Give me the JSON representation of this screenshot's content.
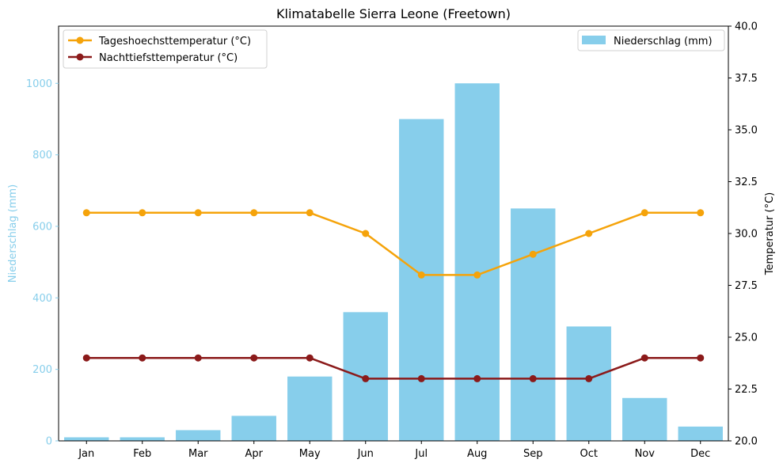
{
  "chart_data": {
    "type": "bar",
    "title": "Klimatabelle Sierra Leone (Freetown)",
    "categories": [
      "Jan",
      "Feb",
      "Mar",
      "Apr",
      "May",
      "Jun",
      "Jul",
      "Aug",
      "Sep",
      "Oct",
      "Nov",
      "Dec"
    ],
    "left_axis": {
      "label": "Niederschlag (mm)",
      "ylim": [
        0,
        1160
      ],
      "ticks": [
        "0",
        "200",
        "400",
        "600",
        "800",
        "1000"
      ],
      "color": "#87ceeb"
    },
    "right_axis": {
      "label": "Temperatur (°C)",
      "ylim": [
        20,
        40
      ],
      "ticks": [
        "20.0",
        "22.5",
        "25.0",
        "27.5",
        "30.0",
        "32.5",
        "35.0",
        "37.5",
        "40.0"
      ]
    },
    "bar_series": {
      "name": "Niederschlag (mm)",
      "color": "#87ceeb",
      "values": [
        10,
        10,
        30,
        70,
        180,
        360,
        900,
        1000,
        650,
        320,
        120,
        40
      ]
    },
    "line_series": [
      {
        "name": "Tageshoechsttemperatur (°C)",
        "color": "#f5a30a",
        "values": [
          31,
          31,
          31,
          31,
          31,
          30,
          28,
          28,
          29,
          30,
          31,
          31
        ]
      },
      {
        "name": "Nachttiefsttemperatur (°C)",
        "color": "#8b1a1a",
        "values": [
          24,
          24,
          24,
          24,
          24,
          23,
          23,
          23,
          23,
          23,
          24,
          24
        ]
      }
    ],
    "legends": {
      "lines": "upper-left",
      "bars": "upper-right"
    },
    "grid": false
  }
}
